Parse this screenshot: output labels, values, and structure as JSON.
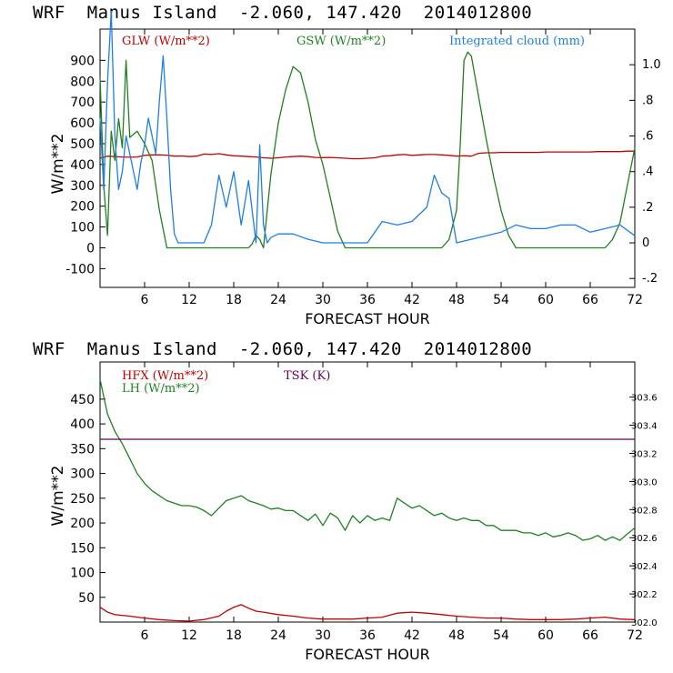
{
  "colors": {
    "red": "#c00000",
    "green": "#208020",
    "blue": "#1f7fe0",
    "purple": "#600060"
  },
  "chart_data": [
    {
      "type": "line",
      "title": "WRF  Manus Island  -2.060, 147.420  2014012800",
      "xlabel": "FORECAST HOUR",
      "ylabel": "W/m**2",
      "xlim": [
        0,
        72
      ],
      "ylim": [
        -190,
        1050
      ],
      "right_ylim": [
        -0.25,
        1.2
      ],
      "x_ticks": [
        6,
        12,
        18,
        24,
        30,
        36,
        42,
        48,
        54,
        60,
        66,
        72
      ],
      "x_tick_labels": [
        "6",
        "12",
        "18",
        "24",
        "30",
        "36",
        "42",
        "48",
        "54",
        "60",
        "66",
        "72"
      ],
      "y_ticks": [
        900,
        800,
        700,
        600,
        500,
        400,
        300,
        200,
        100,
        0,
        -100
      ],
      "y_tick_labels": [
        "900",
        "800",
        "700",
        "600",
        "500",
        "400",
        "300",
        "200",
        "100",
        "0",
        "-100"
      ],
      "right_ticks": [
        1.0,
        0.8,
        0.6,
        0.4,
        0.2,
        0,
        -0.2
      ],
      "right_tick_labels": [
        "1.0",
        ".8",
        ".6",
        ".4",
        ".2",
        "0",
        "-.2"
      ],
      "legend": [
        "GLW (W/m**2)",
        "GSW (W/m**2)",
        "Integrated cloud (mm)"
      ],
      "series": [
        {
          "name": "GLW (W/m**2)",
          "color": "#c00000",
          "axis": "left",
          "x": [
            0,
            1,
            2,
            3,
            4,
            5,
            6,
            7,
            8,
            9,
            10,
            11,
            12,
            13,
            14,
            15,
            16,
            17,
            18,
            19,
            20,
            21,
            22,
            23,
            24,
            25,
            26,
            27,
            28,
            29,
            30,
            31,
            32,
            33,
            34,
            35,
            36,
            37,
            38,
            39,
            40,
            41,
            42,
            43,
            44,
            45,
            46,
            47,
            48,
            49,
            50,
            51,
            52,
            53,
            54,
            55,
            56,
            57,
            58,
            59,
            60,
            61,
            62,
            63,
            64,
            65,
            66,
            67,
            68,
            69,
            70,
            71,
            72
          ],
          "y": [
            430,
            440,
            438,
            436,
            435,
            436,
            444,
            446,
            446,
            445,
            440,
            441,
            438,
            440,
            450,
            448,
            452,
            446,
            442,
            440,
            438,
            436,
            432,
            430,
            432,
            436,
            438,
            440,
            438,
            434,
            433,
            434,
            432,
            430,
            428,
            428,
            430,
            432,
            440,
            442,
            446,
            448,
            444,
            446,
            448,
            448,
            446,
            444,
            440,
            442,
            440,
            454,
            456,
            456,
            458,
            458,
            458,
            458,
            458,
            458,
            460,
            460,
            460,
            460,
            460,
            460,
            460,
            462,
            462,
            462,
            462,
            464,
            464
          ]
        },
        {
          "name": "GSW (W/m**2)",
          "color": "#208020",
          "axis": "left",
          "x": [
            0,
            0.5,
            1,
            1.5,
            2,
            2.5,
            3,
            3.5,
            4,
            5,
            6,
            7,
            8,
            9,
            10,
            12,
            14,
            16,
            18,
            20,
            20.5,
            21,
            21.5,
            22,
            23,
            24,
            25,
            26,
            27,
            28,
            29,
            30,
            31,
            32,
            33,
            34,
            36,
            38,
            40,
            42,
            44,
            45,
            46,
            47,
            48,
            48.5,
            49,
            49.5,
            50,
            51,
            52,
            53,
            54,
            55,
            56,
            57,
            58,
            60,
            62,
            64,
            66,
            68,
            69,
            70,
            71,
            72
          ],
          "y": [
            820,
            300,
            60,
            560,
            420,
            620,
            480,
            900,
            530,
            560,
            500,
            420,
            180,
            0,
            0,
            0,
            0,
            0,
            0,
            0,
            20,
            60,
            40,
            0,
            350,
            600,
            760,
            870,
            840,
            700,
            520,
            400,
            240,
            80,
            0,
            0,
            0,
            0,
            0,
            0,
            0,
            0,
            0,
            40,
            180,
            500,
            900,
            940,
            920,
            720,
            520,
            340,
            180,
            60,
            0,
            0,
            0,
            0,
            0,
            0,
            0,
            0,
            40,
            120,
            300,
            480
          ]
        },
        {
          "name": "Integrated cloud (mm)",
          "color": "#1f7fe0",
          "axis": "right",
          "x": [
            0,
            0.5,
            1,
            1.5,
            2,
            2.5,
            3,
            3.5,
            4,
            4.5,
            5,
            5.5,
            6,
            6.5,
            7,
            7.5,
            8,
            8.5,
            9,
            9.5,
            10,
            10.5,
            11,
            12,
            13,
            14,
            15,
            16,
            17,
            18,
            19,
            20,
            21,
            21.5,
            22,
            22.5,
            23,
            24,
            26,
            28,
            30,
            32,
            34,
            36,
            38,
            40,
            42,
            44,
            45,
            46,
            47,
            48,
            50,
            52,
            54,
            56,
            58,
            60,
            62,
            64,
            66,
            68,
            70,
            72
          ],
          "y": [
            0.7,
            0.3,
            0.9,
            1.3,
            0.6,
            0.3,
            0.4,
            0.6,
            0.5,
            0.4,
            0.3,
            0.45,
            0.55,
            0.7,
            0.6,
            0.5,
            0.8,
            1.05,
            0.7,
            0.3,
            0.05,
            0.0,
            0.0,
            0.0,
            0.0,
            0.0,
            0.1,
            0.38,
            0.2,
            0.4,
            0.1,
            0.35,
            0.0,
            0.55,
            0.1,
            0.0,
            0.03,
            0.05,
            0.05,
            0.02,
            0.0,
            0.0,
            0.0,
            0.0,
            0.12,
            0.1,
            0.12,
            0.2,
            0.38,
            0.28,
            0.25,
            0.0,
            0.02,
            0.04,
            0.06,
            0.1,
            0.08,
            0.08,
            0.1,
            0.1,
            0.06,
            0.08,
            0.1,
            0.04
          ]
        }
      ]
    },
    {
      "type": "line",
      "title": "WRF  Manus Island  -2.060, 147.420  2014012800",
      "xlabel": "FORECAST HOUR",
      "ylabel": "W/m**2",
      "xlim": [
        0,
        72
      ],
      "ylim": [
        0,
        525
      ],
      "right_ylim": [
        302.0,
        303.85
      ],
      "x_ticks": [
        6,
        12,
        18,
        24,
        30,
        36,
        42,
        48,
        54,
        60,
        66,
        72
      ],
      "x_tick_labels": [
        "6",
        "12",
        "18",
        "24",
        "30",
        "36",
        "42",
        "48",
        "54",
        "60",
        "66",
        "72"
      ],
      "y_ticks": [
        450,
        400,
        350,
        300,
        250,
        200,
        150,
        100,
        50
      ],
      "y_tick_labels": [
        "450",
        "400",
        "350",
        "300",
        "250",
        "200",
        "150",
        "100",
        "50"
      ],
      "right_ticks": [
        303.6,
        303.4,
        303.2,
        303.0,
        302.8,
        302.6,
        302.4,
        302.2,
        302.0
      ],
      "right_tick_labels": [
        "303.6",
        "303.4",
        "303.2",
        "303.0",
        "302.8",
        "302.6",
        "302.4",
        "302.2",
        "302.0"
      ],
      "legend": [
        "HFX (W/m**2)",
        "LH  (W/m**2)",
        "TSK (K)"
      ],
      "series": [
        {
          "name": "HFX (W/m**2)",
          "color": "#c00000",
          "axis": "left",
          "x": [
            0,
            1,
            2,
            4,
            6,
            8,
            10,
            12,
            14,
            16,
            17,
            18,
            19,
            20,
            21,
            22,
            24,
            26,
            28,
            30,
            32,
            34,
            36,
            38,
            40,
            42,
            44,
            46,
            48,
            50,
            52,
            54,
            56,
            58,
            60,
            62,
            64,
            66,
            68,
            70,
            72
          ],
          "y": [
            30,
            20,
            15,
            12,
            8,
            5,
            3,
            2,
            5,
            12,
            22,
            30,
            35,
            28,
            22,
            20,
            15,
            12,
            8,
            6,
            6,
            6,
            8,
            10,
            18,
            20,
            18,
            15,
            12,
            10,
            8,
            8,
            6,
            5,
            5,
            5,
            6,
            8,
            10,
            6,
            5
          ]
        },
        {
          "name": "LH  (W/m**2)",
          "color": "#208020",
          "axis": "left",
          "x": [
            0,
            1,
            2,
            3,
            4,
            5,
            6,
            7,
            8,
            9,
            10,
            11,
            12,
            13,
            14,
            15,
            16,
            17,
            18,
            19,
            20,
            21,
            22,
            23,
            24,
            25,
            26,
            27,
            28,
            29,
            30,
            31,
            32,
            33,
            34,
            35,
            36,
            37,
            38,
            39,
            40,
            41,
            42,
            43,
            44,
            45,
            46,
            47,
            48,
            49,
            50,
            51,
            52,
            53,
            54,
            55,
            56,
            57,
            58,
            59,
            60,
            61,
            62,
            63,
            64,
            65,
            66,
            67,
            68,
            69,
            70,
            71,
            72
          ],
          "y": [
            490,
            420,
            385,
            360,
            330,
            300,
            280,
            265,
            255,
            245,
            240,
            235,
            235,
            232,
            225,
            215,
            230,
            245,
            250,
            255,
            245,
            240,
            235,
            228,
            230,
            225,
            225,
            215,
            205,
            218,
            195,
            220,
            210,
            185,
            215,
            200,
            215,
            205,
            210,
            205,
            250,
            240,
            230,
            235,
            225,
            215,
            220,
            210,
            205,
            210,
            205,
            205,
            195,
            195,
            185,
            185,
            185,
            180,
            180,
            175,
            180,
            172,
            175,
            180,
            175,
            165,
            168,
            175,
            165,
            172,
            165,
            178,
            190
          ]
        },
        {
          "name": "TSK (K)",
          "color": "#600060",
          "axis": "right",
          "x": [
            0,
            72
          ],
          "y": [
            303.3,
            303.3
          ]
        }
      ]
    }
  ]
}
